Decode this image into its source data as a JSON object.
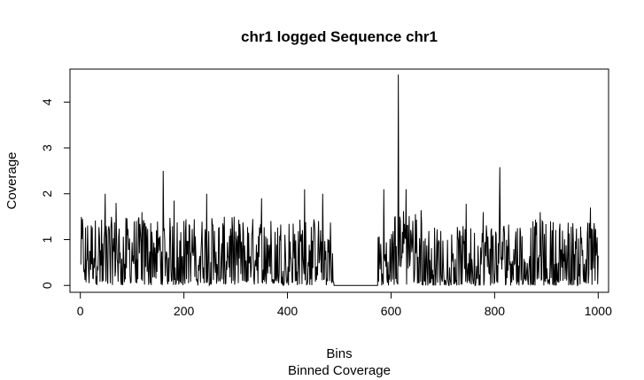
{
  "chart_data": {
    "type": "line",
    "title": "chr1 logged Sequence chr1",
    "xlabel": "Bins",
    "ylabel": "Coverage",
    "sub": "Binned Coverage",
    "xlim": [
      -20,
      1020
    ],
    "ylim": [
      -0.15,
      4.72
    ],
    "xticks": [
      0,
      200,
      400,
      600,
      800,
      1000
    ],
    "yticks": [
      0,
      1,
      2,
      3,
      4
    ],
    "grid": false,
    "series": [
      {
        "n_bins": 1000,
        "baseline": 0,
        "segments": [
          {
            "from": 1,
            "to": 490,
            "level": 0.75,
            "amp": 0.75
          },
          {
            "from": 490,
            "to": 575,
            "level": 0,
            "amp": 0
          },
          {
            "from": 575,
            "to": 600,
            "level": 0.5,
            "amp": 0.8
          },
          {
            "from": 600,
            "to": 660,
            "level": 1.0,
            "amp": 0.7
          },
          {
            "from": 660,
            "to": 780,
            "level": 0.6,
            "amp": 0.7
          },
          {
            "from": 780,
            "to": 1000,
            "level": 0.7,
            "amp": 0.75
          }
        ],
        "peaks": [
          {
            "x": 4,
            "y": 1.45
          },
          {
            "x": 48,
            "y": 2.0
          },
          {
            "x": 69,
            "y": 1.8
          },
          {
            "x": 119,
            "y": 1.6
          },
          {
            "x": 160,
            "y": 2.5
          },
          {
            "x": 181,
            "y": 1.85
          },
          {
            "x": 244,
            "y": 2.0
          },
          {
            "x": 297,
            "y": 1.5
          },
          {
            "x": 350,
            "y": 1.9
          },
          {
            "x": 433,
            "y": 2.1
          },
          {
            "x": 468,
            "y": 2.0
          },
          {
            "x": 586,
            "y": 2.1
          },
          {
            "x": 614,
            "y": 4.6
          },
          {
            "x": 629,
            "y": 2.1
          },
          {
            "x": 745,
            "y": 1.78
          },
          {
            "x": 778,
            "y": 1.6
          },
          {
            "x": 810,
            "y": 2.58
          },
          {
            "x": 888,
            "y": 1.6
          },
          {
            "x": 985,
            "y": 1.7
          },
          {
            "x": 1000,
            "y": 0.65
          }
        ]
      }
    ]
  }
}
